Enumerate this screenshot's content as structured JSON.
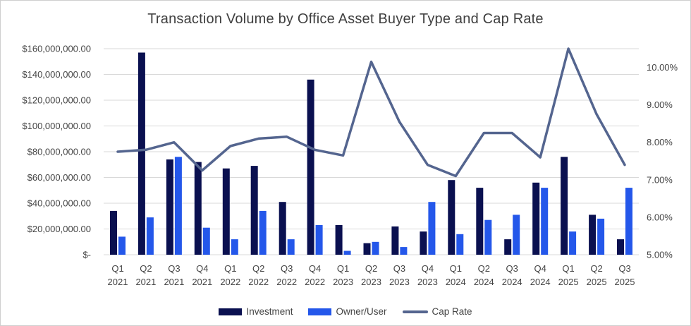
{
  "title": "Transaction Volume by Office Asset Buyer Type and Cap Rate",
  "colors": {
    "investment": "#0A1050",
    "owner_user": "#2457EA",
    "cap_rate": "#54658F",
    "gridline": "#D9D9D9",
    "axis_text": "#444444",
    "title_text": "#3F3F3F"
  },
  "chart_data": {
    "type": "bar",
    "subtype": "combo-bar-line",
    "title": "Transaction Volume by Office Asset Buyer Type and Cap Rate",
    "categories": [
      "Q1 2021",
      "Q2 2021",
      "Q3 2021",
      "Q4 2021",
      "Q1 2022",
      "Q2 2022",
      "Q3 2022",
      "Q4 2022",
      "Q1 2023",
      "Q2 2023",
      "Q3 2023",
      "Q4 2023",
      "Q1 2024",
      "Q2 2024",
      "Q3 2024",
      "Q4 2024",
      "Q1 2025",
      "Q2 2025",
      "Q3 2025"
    ],
    "series": [
      {
        "name": "Investment",
        "type": "bar",
        "axis": "left",
        "color": "#0A1050",
        "values": [
          34000000,
          157000000,
          74000000,
          72000000,
          67000000,
          69000000,
          41000000,
          136000000,
          23000000,
          9000000,
          22000000,
          18000000,
          58000000,
          52000000,
          12000000,
          56000000,
          76000000,
          31000000,
          12000000
        ]
      },
      {
        "name": "Owner/User",
        "type": "bar",
        "axis": "left",
        "color": "#2457EA",
        "values": [
          14000000,
          29000000,
          76000000,
          21000000,
          12000000,
          34000000,
          12000000,
          23000000,
          3000000,
          10000000,
          6000000,
          41000000,
          16000000,
          27000000,
          31000000,
          52000000,
          18000000,
          28000000,
          52000000
        ]
      },
      {
        "name": "Cap Rate",
        "type": "line",
        "axis": "right",
        "color": "#54658F",
        "values": [
          7.75,
          7.8,
          8.0,
          7.25,
          7.9,
          8.1,
          8.15,
          7.8,
          7.65,
          10.15,
          8.55,
          7.4,
          7.1,
          8.25,
          8.25,
          7.6,
          10.5,
          8.75,
          7.4
        ]
      }
    ],
    "left_axis": {
      "min": 0,
      "max": 160000000,
      "tick_values": [
        160000000,
        140000000,
        120000000,
        100000000,
        80000000,
        60000000,
        40000000,
        20000000,
        0
      ],
      "tick_labels": [
        "$160,000,000.00",
        "$140,000,000.00",
        "$120,000,000.00",
        "$100,000,000.00",
        "$80,000,000.00",
        "$60,000,000.00",
        "$40,000,000.00",
        "$20,000,000.00",
        "$-"
      ]
    },
    "right_axis": {
      "min": 5,
      "max": 10.5,
      "tick_values": [
        10,
        9,
        8,
        7,
        6,
        5
      ],
      "tick_labels": [
        "10.00%",
        "9.00%",
        "8.00%",
        "7.00%",
        "6.00%",
        "5.00%"
      ]
    },
    "grid": true,
    "legend_position": "bottom"
  }
}
